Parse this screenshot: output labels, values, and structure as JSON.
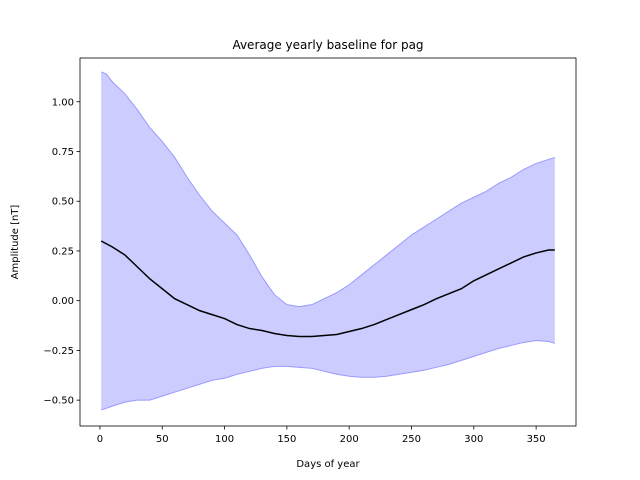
{
  "chart_data": {
    "type": "area",
    "title": "Average yearly baseline for pag",
    "xlabel": "Days of year",
    "ylabel": "Amplitude [nT]",
    "xlim": [
      -16,
      382
    ],
    "ylim": [
      -0.63,
      1.22
    ],
    "xticks": [
      0,
      50,
      100,
      150,
      200,
      250,
      300,
      350
    ],
    "yticks": [
      -0.5,
      -0.25,
      0.0,
      0.25,
      0.5,
      0.75,
      1.0
    ],
    "ytick_labels": [
      "−0.50",
      "−0.25",
      "0.00",
      "0.25",
      "0.50",
      "0.75",
      "1.00"
    ],
    "grid": false,
    "colors": {
      "band_fill": "#ccccff",
      "band_edge": "#9999ff",
      "line": "#000000"
    },
    "series": [
      {
        "values": [
          [
            1,
            0.3
          ],
          [
            10,
            0.27
          ],
          [
            20,
            0.23
          ],
          [
            30,
            0.17
          ],
          [
            40,
            0.11
          ],
          [
            50,
            0.06
          ],
          [
            60,
            0.01
          ],
          [
            70,
            -0.02
          ],
          [
            80,
            -0.05
          ],
          [
            90,
            -0.07
          ],
          [
            100,
            -0.09
          ],
          [
            110,
            -0.12
          ],
          [
            120,
            -0.14
          ],
          [
            130,
            -0.15
          ],
          [
            140,
            -0.165
          ],
          [
            150,
            -0.175
          ],
          [
            160,
            -0.18
          ],
          [
            170,
            -0.18
          ],
          [
            180,
            -0.175
          ],
          [
            190,
            -0.17
          ],
          [
            200,
            -0.155
          ],
          [
            210,
            -0.14
          ],
          [
            220,
            -0.12
          ],
          [
            230,
            -0.095
          ],
          [
            240,
            -0.07
          ],
          [
            250,
            -0.045
          ],
          [
            260,
            -0.02
          ],
          [
            270,
            0.01
          ],
          [
            280,
            0.035
          ],
          [
            290,
            0.06
          ],
          [
            300,
            0.1
          ],
          [
            310,
            0.13
          ],
          [
            320,
            0.16
          ],
          [
            330,
            0.19
          ],
          [
            340,
            0.22
          ],
          [
            350,
            0.24
          ],
          [
            360,
            0.255
          ],
          [
            365,
            0.255
          ]
        ]
      },
      {
        "band": true,
        "upper": [
          [
            1,
            1.15
          ],
          [
            5,
            1.14
          ],
          [
            10,
            1.1
          ],
          [
            20,
            1.04
          ],
          [
            30,
            0.96
          ],
          [
            40,
            0.87
          ],
          [
            50,
            0.8
          ],
          [
            60,
            0.72
          ],
          [
            70,
            0.62
          ],
          [
            80,
            0.53
          ],
          [
            90,
            0.45
          ],
          [
            100,
            0.39
          ],
          [
            110,
            0.33
          ],
          [
            120,
            0.23
          ],
          [
            130,
            0.12
          ],
          [
            140,
            0.03
          ],
          [
            150,
            -0.02
          ],
          [
            160,
            -0.03
          ],
          [
            170,
            -0.02
          ],
          [
            180,
            0.01
          ],
          [
            190,
            0.04
          ],
          [
            200,
            0.08
          ],
          [
            210,
            0.13
          ],
          [
            220,
            0.18
          ],
          [
            230,
            0.23
          ],
          [
            240,
            0.28
          ],
          [
            250,
            0.33
          ],
          [
            260,
            0.37
          ],
          [
            270,
            0.41
          ],
          [
            280,
            0.45
          ],
          [
            290,
            0.49
          ],
          [
            300,
            0.52
          ],
          [
            310,
            0.55
          ],
          [
            320,
            0.59
          ],
          [
            330,
            0.62
          ],
          [
            340,
            0.66
          ],
          [
            350,
            0.69
          ],
          [
            360,
            0.71
          ],
          [
            365,
            0.72
          ]
        ],
        "lower": [
          [
            1,
            -0.55
          ],
          [
            10,
            -0.53
          ],
          [
            20,
            -0.51
          ],
          [
            30,
            -0.5
          ],
          [
            40,
            -0.5
          ],
          [
            50,
            -0.48
          ],
          [
            60,
            -0.46
          ],
          [
            70,
            -0.44
          ],
          [
            80,
            -0.42
          ],
          [
            90,
            -0.4
          ],
          [
            100,
            -0.39
          ],
          [
            110,
            -0.37
          ],
          [
            120,
            -0.355
          ],
          [
            130,
            -0.34
          ],
          [
            140,
            -0.33
          ],
          [
            150,
            -0.33
          ],
          [
            160,
            -0.335
          ],
          [
            170,
            -0.34
          ],
          [
            180,
            -0.355
          ],
          [
            190,
            -0.37
          ],
          [
            200,
            -0.38
          ],
          [
            210,
            -0.385
          ],
          [
            220,
            -0.385
          ],
          [
            230,
            -0.38
          ],
          [
            240,
            -0.37
          ],
          [
            250,
            -0.36
          ],
          [
            260,
            -0.35
          ],
          [
            270,
            -0.335
          ],
          [
            280,
            -0.32
          ],
          [
            290,
            -0.3
          ],
          [
            300,
            -0.28
          ],
          [
            310,
            -0.26
          ],
          [
            320,
            -0.24
          ],
          [
            330,
            -0.225
          ],
          [
            340,
            -0.21
          ],
          [
            350,
            -0.2
          ],
          [
            360,
            -0.205
          ],
          [
            365,
            -0.215
          ]
        ]
      }
    ]
  }
}
